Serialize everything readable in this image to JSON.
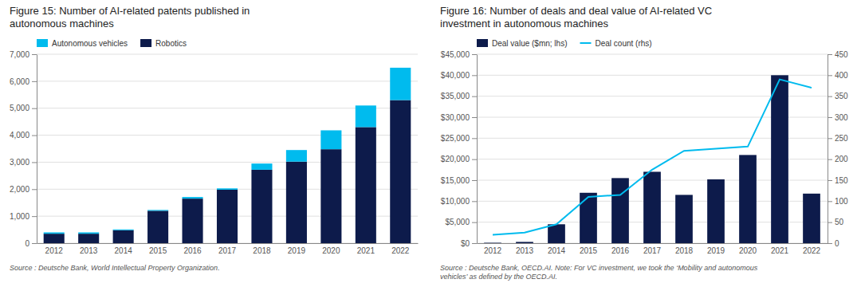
{
  "chart_data": [
    {
      "type": "bar",
      "title": "Figure 15: Number of AI-related patents published in\nautonomous machines",
      "categories": [
        "2012",
        "2013",
        "2014",
        "2015",
        "2016",
        "2017",
        "2018",
        "2019",
        "2020",
        "2021",
        "2022"
      ],
      "series": [
        {
          "name": "Robotics",
          "color": "#0d1b4b",
          "values": [
            350,
            350,
            480,
            1200,
            1650,
            1980,
            2720,
            3020,
            3480,
            4300,
            5300
          ]
        },
        {
          "name": "Autonomous vehicles",
          "color": "#00bbee",
          "values": [
            50,
            50,
            30,
            30,
            60,
            50,
            230,
            430,
            700,
            800,
            1200
          ]
        }
      ],
      "stacked": true,
      "ylim": [
        0,
        7000
      ],
      "yticks": [
        0,
        {
          "value": 1000,
          "label": "1,000"
        },
        {
          "value": 2000,
          "label": "2,000"
        },
        {
          "value": 3000,
          "label": "3,000"
        },
        {
          "value": 4000,
          "label": "4,000"
        },
        {
          "value": 5000,
          "label": "5,000"
        },
        {
          "value": 6000,
          "label": "6,000"
        },
        {
          "value": 7000,
          "label": "7,000"
        }
      ],
      "grid": true,
      "legend": "upper left",
      "annotations": [
        "Source : Deutsche Bank, World Intellectual Property Organization."
      ]
    },
    {
      "type": "bar",
      "title": "Figure 16: Number of deals and deal value of AI-related VC\ninvestment in autonomous machines",
      "categories": [
        "2012",
        "2013",
        "2014",
        "2015",
        "2016",
        "2017",
        "2018",
        "2019",
        "2020",
        "2021",
        "2022"
      ],
      "series": [
        {
          "name": "Deal value ($mn; lhs)",
          "color": "#0d1b4b",
          "values": [
            100,
            300,
            4500,
            12000,
            15500,
            17000,
            11500,
            15200,
            21000,
            40000,
            11800
          ]
        },
        {
          "name": "Deal count (rhs)",
          "type": "line",
          "axis": "y2",
          "color": "#00bbee",
          "values": [
            20,
            25,
            45,
            110,
            115,
            175,
            220,
            225,
            230,
            390,
            370
          ]
        }
      ],
      "ylim": [
        0,
        45000
      ],
      "yticks": [
        {
          "value": 0,
          "label": "$0"
        },
        {
          "value": 5000,
          "label": "$5,000"
        },
        {
          "value": 10000,
          "label": "$10,000"
        },
        {
          "value": 15000,
          "label": "$15,000"
        },
        {
          "value": 20000,
          "label": "$20,000"
        },
        {
          "value": 25000,
          "label": "$25,000"
        },
        {
          "value": 30000,
          "label": "$30,000"
        },
        {
          "value": 35000,
          "label": "$35,000"
        },
        {
          "value": 40000,
          "label": "$40,000"
        },
        {
          "value": 45000,
          "label": "$45,000"
        }
      ],
      "y2lim": [
        0,
        450
      ],
      "y2ticks": [
        0,
        50,
        100,
        150,
        200,
        250,
        300,
        350,
        400,
        450
      ],
      "grid": true,
      "legend": "upper left",
      "annotations": [
        "Source : Deutsche Bank, OECD.AI. Note: For VC investment, we took the ‘Mobility and autonomous\nvehicles’ as defined by the OECD.AI."
      ]
    }
  ]
}
